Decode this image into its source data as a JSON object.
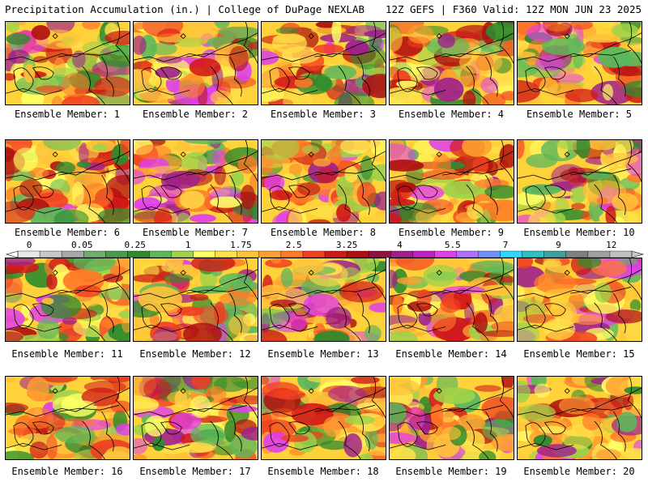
{
  "header": {
    "left": "Precipitation Accumulation (in.) | College of DuPage NEXLAB",
    "right": "12Z GEFS | F360 Valid: 12Z MON JUN 23 2025"
  },
  "colorbar": {
    "labels": [
      "0",
      "0.05",
      "0.25",
      "1",
      "1.75",
      "2.5",
      "3.25",
      "4",
      "5.5",
      "7",
      "9",
      "12"
    ],
    "colors": [
      "#e8e8e8",
      "#c8c8c8",
      "#a8a8a8",
      "#6fae6f",
      "#4c9a4c",
      "#2e8b2e",
      "#5cb85c",
      "#9fd24a",
      "#ffff66",
      "#ffe14a",
      "#ffc23a",
      "#ffa030",
      "#ff7a28",
      "#f04020",
      "#d01818",
      "#b01010",
      "#901040",
      "#a0208c",
      "#c020c0",
      "#e040e8",
      "#b070ff",
      "#7090ff",
      "#30d8ff",
      "#30c0c0",
      "#40a0a0",
      "#808080",
      "#a0a0a0",
      "#c0c0c0"
    ]
  },
  "members": [
    {
      "label": "Ensemble Member: 1"
    },
    {
      "label": "Ensemble Member: 2"
    },
    {
      "label": "Ensemble Member: 3"
    },
    {
      "label": "Ensemble Member: 4"
    },
    {
      "label": "Ensemble Member: 5"
    },
    {
      "label": "Ensemble Member: 6"
    },
    {
      "label": "Ensemble Member: 7"
    },
    {
      "label": "Ensemble Member: 8"
    },
    {
      "label": "Ensemble Member: 9"
    },
    {
      "label": "Ensemble Member: 10"
    },
    {
      "label": "Ensemble Member: 11"
    },
    {
      "label": "Ensemble Member: 12"
    },
    {
      "label": "Ensemble Member: 13"
    },
    {
      "label": "Ensemble Member: 14"
    },
    {
      "label": "Ensemble Member: 15"
    },
    {
      "label": "Ensemble Member: 16"
    },
    {
      "label": "Ensemble Member: 17"
    },
    {
      "label": "Ensemble Member: 18"
    },
    {
      "label": "Ensemble Member: 19"
    },
    {
      "label": "Ensemble Member: 20"
    }
  ]
}
